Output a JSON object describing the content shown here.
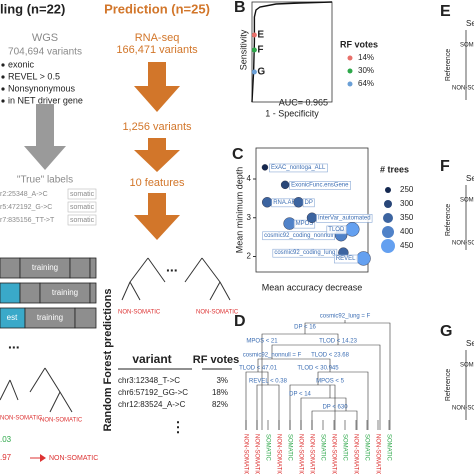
{
  "panel_a": {
    "title": "ling (n=22)",
    "source": "WGS",
    "variant_count": "704,694 variants",
    "filters": [
      "exonic",
      "REVEL > 0.5",
      "Nonsynonymous",
      "in NET driver gene"
    ],
    "labels_title": "\"True\" labels",
    "label_rows": [
      {
        "variant": "r2:25348_A->C",
        "label": "somatic"
      },
      {
        "variant": "r5:472192_G->C",
        "label": "somatic"
      },
      {
        "variant": "r7:835156_TT->T",
        "label": "somatic"
      }
    ],
    "training_rows": [
      "training",
      "training",
      "training"
    ],
    "test_label": "est",
    "tree_labels": [
      "NON-SOMATIC",
      "NON-SOMATIC"
    ],
    "ellipsis": "...",
    "votes": [
      ".03",
      ".97"
    ],
    "result": "NON-SOMATIC"
  },
  "panel_p": {
    "title": "Prediction (n=25)",
    "source": "RNA-seq",
    "variant_count": "166,471 variants",
    "step1": "1,256 variants",
    "step2": "10 features",
    "tree_labels": [
      "NON-SOMATIC",
      "NON-SOMATIC"
    ],
    "ellipsis": "...",
    "side_title": "Random Forest predictions",
    "table": {
      "headers": [
        "variant",
        "RF votes"
      ],
      "rows": [
        [
          "chr3:12348_T->C",
          "3%"
        ],
        [
          "chr6:57192_GG->C",
          "18%"
        ],
        [
          "chr12:83524_A->C",
          "82%"
        ]
      ]
    },
    "more": "⋮"
  },
  "panel_b": {
    "letter": "B",
    "y_label": "Sensitivity",
    "x_label": "1 - Specificity",
    "auc": "AUC= 0.965",
    "xlim": [
      0,
      1
    ],
    "ylim": [
      0,
      1
    ],
    "roc": {
      "x": [
        0,
        0.02,
        0.03,
        0.03,
        0.05,
        0.1,
        0.3,
        0.6,
        1
      ],
      "y": [
        0,
        0.3,
        0.6,
        0.85,
        0.92,
        0.95,
        0.98,
        0.99,
        1
      ]
    },
    "points": [
      {
        "label": "E",
        "x": 0.03,
        "y": 0.67,
        "color": "#e8706a"
      },
      {
        "label": "F",
        "x": 0.03,
        "y": 0.52,
        "color": "#2ea84a"
      },
      {
        "label": "G",
        "x": 0.03,
        "y": 0.3,
        "color": "#6a9fd6"
      }
    ],
    "legend_title": "RF votes",
    "legend": [
      {
        "label": "14%",
        "color": "#e8706a"
      },
      {
        "label": "30%",
        "color": "#2ea84a"
      },
      {
        "label": "64%",
        "color": "#6a9fd6"
      }
    ]
  },
  "panel_c": {
    "letter": "C",
    "y_label": "Mean minimum depth",
    "x_label": "Mean accuracy decrease",
    "xlim": [
      0,
      1
    ],
    "ylim": [
      1.6,
      4.8
    ],
    "yticks": [
      2,
      3,
      4
    ],
    "features": [
      {
        "name": "ExAC_nontoga_ALL",
        "x": 0.08,
        "y": 4.3,
        "trees": 250
      },
      {
        "name": "ExonicFunc.ensGene",
        "x": 0.26,
        "y": 3.85,
        "trees": 300
      },
      {
        "name": "RNA.AF",
        "x": 0.1,
        "y": 3.4,
        "trees": 350
      },
      {
        "name": "DP",
        "x": 0.38,
        "y": 3.4,
        "trees": 350
      },
      {
        "name": "MPOS",
        "x": 0.3,
        "y": 2.85,
        "trees": 400
      },
      {
        "name": "InterVar_automated",
        "x": 0.5,
        "y": 3.0,
        "trees": 350
      },
      {
        "name": "cosmic92_coding_nonnull",
        "x": 0.76,
        "y": 2.55,
        "trees": 400
      },
      {
        "name": "TLOD",
        "x": 0.86,
        "y": 2.7,
        "trees": 450
      },
      {
        "name": "cosmic92_coding_lung",
        "x": 0.78,
        "y": 2.1,
        "trees": 350
      },
      {
        "name": "REVEL",
        "x": 0.96,
        "y": 1.95,
        "trees": 450
      }
    ],
    "legend_title": "# trees",
    "legend_sizes": [
      250,
      300,
      350,
      400,
      450
    ]
  },
  "panel_d": {
    "letter": "D",
    "splits": [
      "cosmic92_lung = F",
      "DP < 16",
      "MPOS < 21",
      "TLOD < 14.23",
      "cosmic92_nonnull = F",
      "TLOD < 23.68",
      "TLOD < 47.01",
      "TLOD < 30.945",
      "REVEL < 0.38",
      "MPOS < 5",
      "DP < 14",
      "DP < 630"
    ],
    "leaves": [
      {
        "label": "NON-SOMATIC",
        "color": "#d33"
      },
      {
        "label": "NON-SOMATIC",
        "color": "#d33"
      },
      {
        "label": "SOMATIC",
        "color": "#2ea84a"
      },
      {
        "label": "NON-SOMATIC",
        "color": "#d33"
      },
      {
        "label": "SOMATIC",
        "color": "#2ea84a"
      },
      {
        "label": "NON-SOMATIC",
        "color": "#d33"
      },
      {
        "label": "NON-SOMATIC",
        "color": "#d33"
      },
      {
        "label": "SOMATIC",
        "color": "#2ea84a"
      },
      {
        "label": "NON-SOMATIC",
        "color": "#d33"
      },
      {
        "label": "SOMATIC",
        "color": "#2ea84a"
      },
      {
        "label": "NON-SOMATIC",
        "color": "#d33"
      },
      {
        "label": "SOMATIC",
        "color": "#2ea84a"
      },
      {
        "label": "NON-SOMATIC",
        "color": "#d33"
      },
      {
        "label": "SOMATIC",
        "color": "#2ea84a"
      }
    ]
  },
  "side_panels": [
    {
      "letter": "E",
      "title": "Se",
      "axis": "Reference",
      "classes": [
        "SOM",
        "NON-SOM"
      ]
    },
    {
      "letter": "F",
      "title": "Se",
      "axis": "Reference",
      "classes": [
        "SOM",
        "NON-SOM"
      ]
    },
    {
      "letter": "G",
      "title": "Se",
      "axis": "Reference",
      "classes": [
        "SOM",
        "NON-SOM"
      ]
    }
  ]
}
